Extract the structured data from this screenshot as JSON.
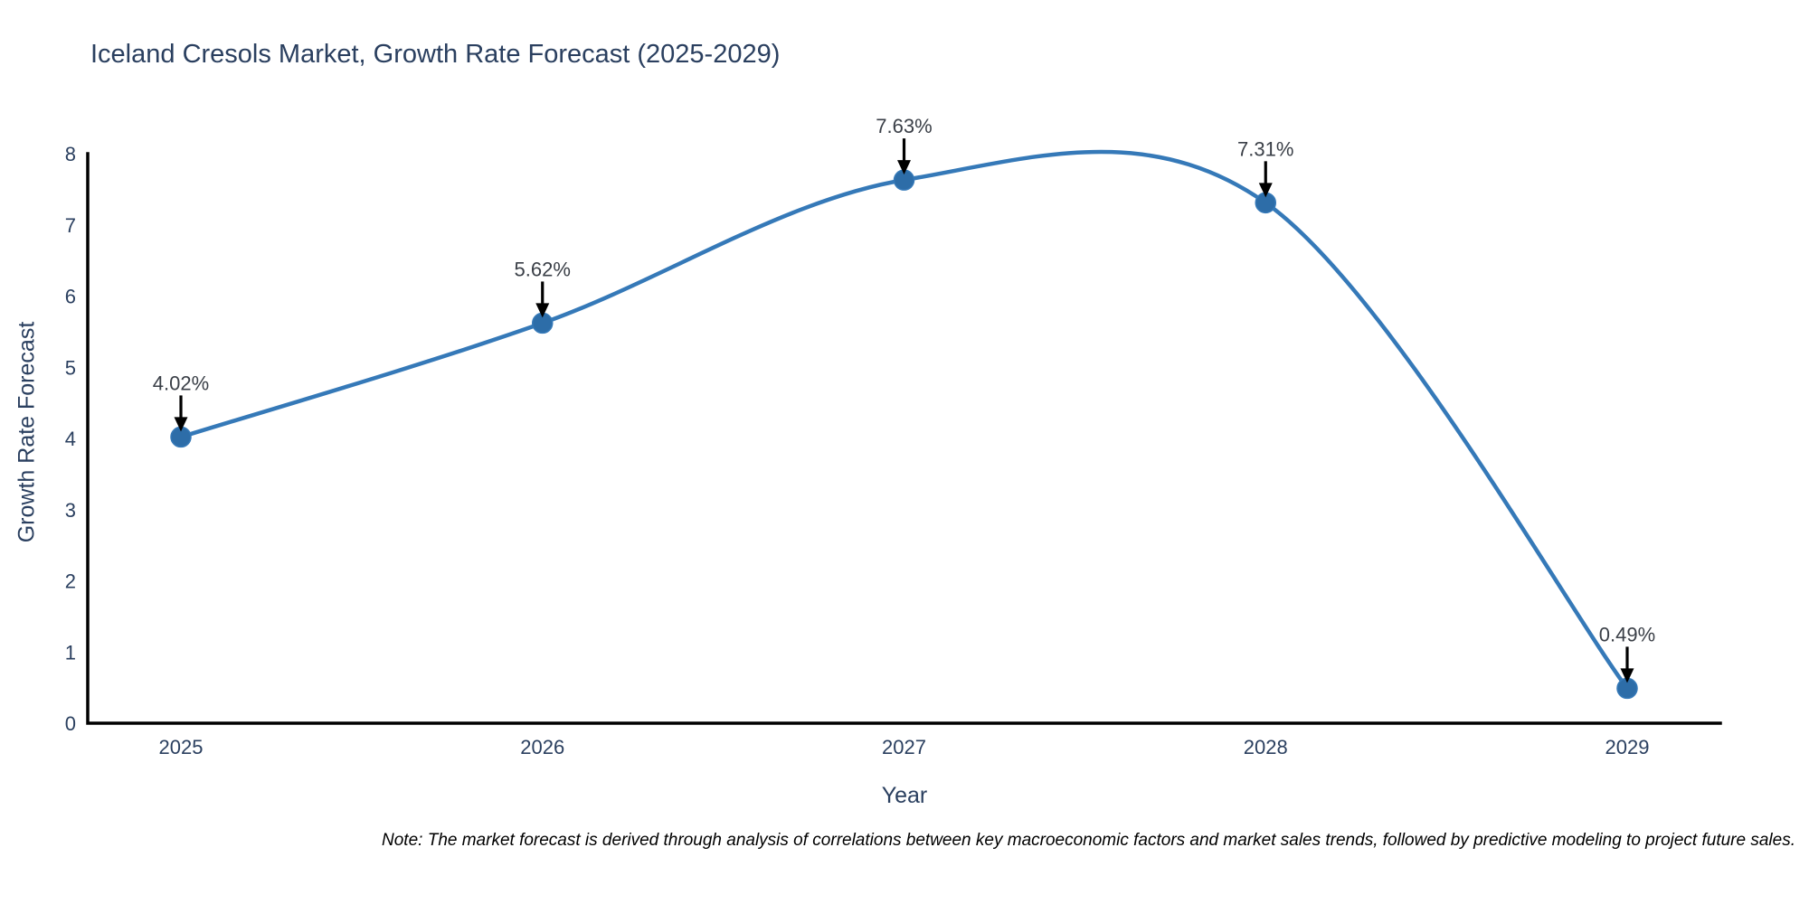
{
  "chart_data": {
    "type": "line",
    "title": "Iceland Cresols Market, Growth Rate Forecast (2025-2029)",
    "xlabel": "Year",
    "ylabel": "Growth Rate Forecast",
    "x": [
      "2025",
      "2026",
      "2027",
      "2028",
      "2029"
    ],
    "values": [
      4.02,
      5.62,
      7.63,
      7.31,
      0.49
    ],
    "point_labels": [
      "4.02%",
      "5.62%",
      "7.63%",
      "7.31%",
      "0.49%"
    ],
    "ylim": [
      0,
      8
    ],
    "yticks": [
      0,
      1,
      2,
      3,
      4,
      5,
      6,
      7,
      8
    ],
    "grid": false,
    "legend": "none",
    "line_shape": "spline",
    "note": "Note: The market forecast is derived through analysis of correlations between key macroeconomic factors and market sales trends, followed by predictive modeling to project future sales.",
    "colors": {
      "line": "#3579b8",
      "marker": "#2d6da8",
      "axis": "#000000",
      "title_text": "#2a3f5f",
      "axis_title_text": "#2a3f5f",
      "tick_text": "#2a3f5f",
      "annotation_text": "#3a3f47",
      "arrow": "#000000",
      "note_text": "#000000",
      "background": "#ffffff"
    }
  }
}
